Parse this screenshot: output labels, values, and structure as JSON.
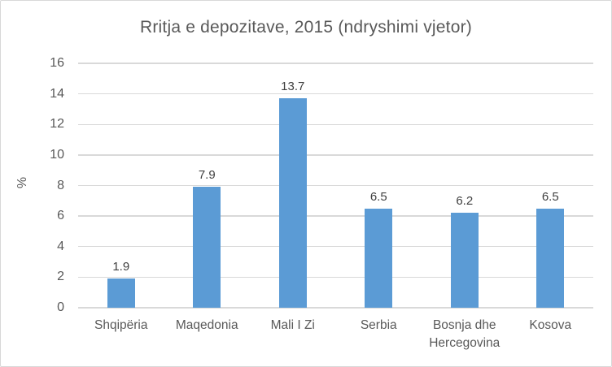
{
  "chart_data": {
    "type": "bar",
    "title": "Rritja e depozitave, 2015 (ndryshimi vjetor)",
    "xlabel": "",
    "ylabel": "%",
    "categories": [
      "Shqipëria",
      "Maqedonia",
      "Mali I Zi",
      "Serbia",
      "Bosnja dhe Hercegovina",
      "Kosova"
    ],
    "values": [
      1.9,
      7.9,
      13.7,
      6.5,
      6.2,
      6.5
    ],
    "data_labels": [
      "1.9",
      "7.9",
      "13.7",
      "6.5",
      "6.2",
      "6.5"
    ],
    "ylim": [
      0,
      16
    ],
    "yticks": [
      0,
      2,
      4,
      6,
      8,
      10,
      12,
      14,
      16
    ],
    "grid": true,
    "legend": false,
    "colors": {
      "bar": "#5B9BD5",
      "gridline": "#D9D9D9",
      "axis_text": "#595959",
      "title_text": "#595959",
      "data_label_text": "#404040",
      "frame_border": "#D8D8D8"
    }
  }
}
